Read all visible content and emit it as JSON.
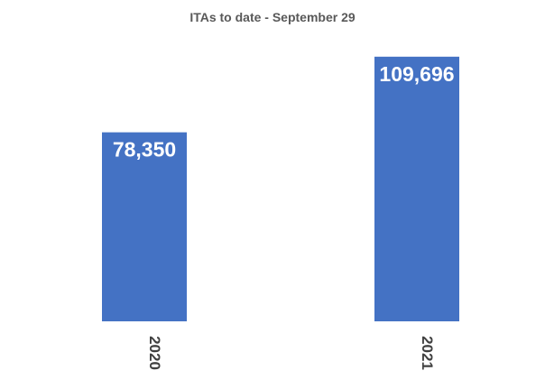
{
  "chart_data": {
    "type": "bar",
    "title": "ITAs to date - September 29",
    "categories": [
      "2020",
      "2021"
    ],
    "values": [
      78350,
      109696
    ],
    "data_labels": [
      "78,350",
      "109,696"
    ],
    "ylim": [
      0,
      110000
    ],
    "grid": false,
    "legend": "none",
    "bar_color": "#4472C4",
    "background_color": "#ffffff"
  }
}
